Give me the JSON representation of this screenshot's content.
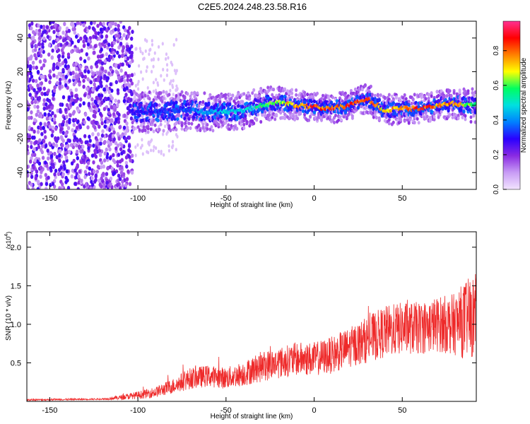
{
  "title": "C2E5.2024.248.23.58.R16",
  "colors": {
    "snr_line": "#ee2a2a",
    "colormap": [
      "#f2e4ff",
      "#c89cf5",
      "#8a2be2",
      "#2a00ff",
      "#0080ff",
      "#00e0e0",
      "#00ff60",
      "#ffff00",
      "#ff8000",
      "#ff0000",
      "#ff3090"
    ]
  },
  "chart_data": [
    {
      "type": "heatmap",
      "title": "C2E5.2024.248.23.58.R16",
      "xlabel": "Height of straight line (km)",
      "ylabel": "Frequency (Hz)",
      "xlim": [
        -163,
        92
      ],
      "ylim": [
        -50,
        50
      ],
      "x_ticks": [
        -150,
        -100,
        -50,
        0,
        50
      ],
      "y_ticks": [
        -40,
        -20,
        0,
        20,
        40
      ],
      "colorbar": {
        "label": "Normalized spectral amplitude",
        "range": [
          0.0,
          0.97
        ],
        "ticks": [
          "0.0",
          "0.2",
          "0.4",
          "0.6",
          "0.8"
        ]
      },
      "noise_region_x": [
        -163,
        -103
      ],
      "ridge": {
        "x": [
          -103,
          -90,
          -80,
          -70,
          -60,
          -50,
          -40,
          -30,
          -20,
          -10,
          0,
          10,
          20,
          30,
          40,
          50,
          60,
          70,
          80,
          90
        ],
        "frequency": [
          -4,
          -4,
          -3,
          -3,
          -4,
          -4,
          -3,
          0,
          2,
          0,
          -1,
          -2,
          0,
          4,
          -3,
          -2,
          -2,
          0,
          1,
          0
        ],
        "amplitude": [
          0.3,
          0.35,
          0.35,
          0.4,
          0.45,
          0.5,
          0.5,
          0.6,
          0.7,
          0.8,
          0.9,
          0.85,
          0.9,
          0.85,
          0.75,
          0.85,
          0.9,
          0.85,
          0.85,
          0.6
        ]
      }
    },
    {
      "type": "line",
      "xlabel": "Height of straight line (km)",
      "ylabel": "SNR (10 * v/v)",
      "y_multiplier": "(x10",
      "y_multiplier_exp": "4",
      "xlim": [
        -163,
        92
      ],
      "ylim": [
        0,
        2.2
      ],
      "x_ticks": [
        -150,
        -100,
        -50,
        0,
        50
      ],
      "y_ticks": [
        0.5,
        1.0,
        1.5,
        2.0
      ],
      "series": [
        {
          "x": [
            -163,
            -120,
            -110,
            -100,
            -90,
            -80,
            -70,
            -60,
            -50,
            -40,
            -30,
            -20,
            -10,
            0,
            10,
            20,
            30,
            40,
            50,
            60,
            70,
            80,
            85,
            90,
            92
          ],
          "y": [
            0.02,
            0.03,
            0.05,
            0.08,
            0.12,
            0.2,
            0.3,
            0.33,
            0.3,
            0.36,
            0.45,
            0.5,
            0.55,
            0.55,
            0.6,
            0.7,
            0.8,
            0.9,
            0.95,
            0.95,
            1.0,
            1.0,
            1.05,
            1.1,
            1.1
          ],
          "spread": [
            0.01,
            0.01,
            0.03,
            0.05,
            0.07,
            0.1,
            0.14,
            0.14,
            0.14,
            0.16,
            0.2,
            0.2,
            0.22,
            0.22,
            0.24,
            0.26,
            0.3,
            0.34,
            0.34,
            0.34,
            0.36,
            0.4,
            0.5,
            0.55,
            0.55
          ]
        }
      ]
    }
  ]
}
